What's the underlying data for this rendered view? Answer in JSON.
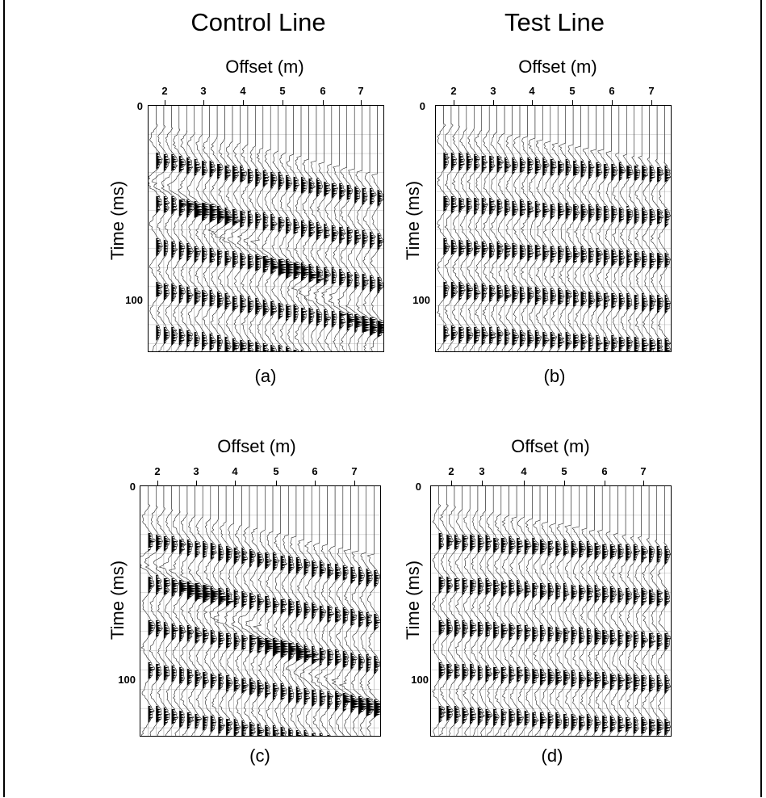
{
  "headers": {
    "control": "Control Line",
    "test": "Test Line"
  },
  "axis": {
    "x_label": "Offset (m)",
    "y_label": "Time (ms)",
    "x_ticks": [
      "2",
      "3",
      "4",
      "5",
      "6",
      "7"
    ],
    "y_ticks": [
      "0",
      "100"
    ]
  },
  "panels": [
    {
      "id": "a",
      "label": "(a)"
    },
    {
      "id": "b",
      "label": "(b)"
    },
    {
      "id": "c",
      "label": "(c)"
    },
    {
      "id": "d",
      "label": "(d)"
    }
  ]
}
